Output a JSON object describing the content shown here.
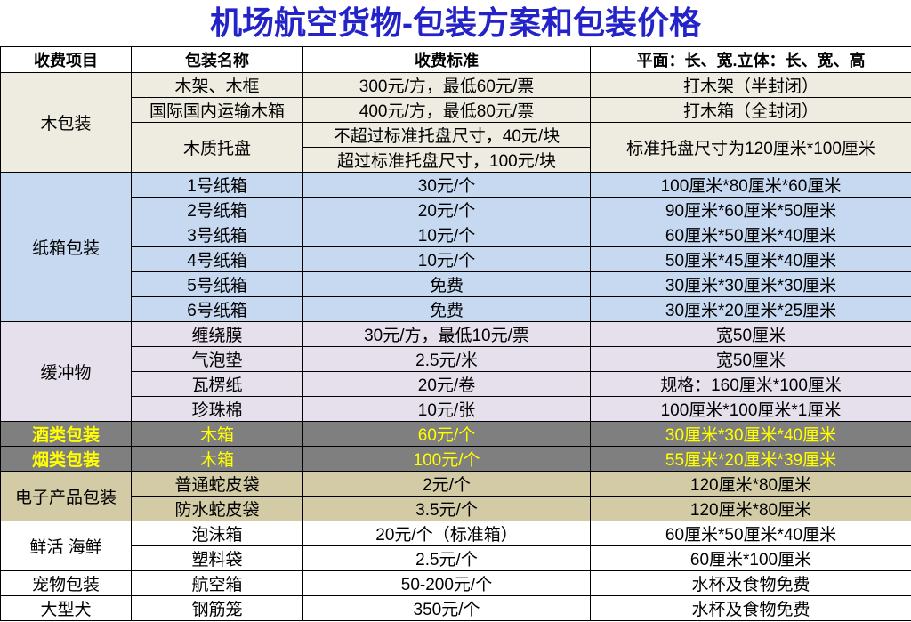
{
  "table": {
    "title": "机场航空货物-包装方案和包装价格",
    "header": [
      "收费项目",
      "包装名称",
      "收费标准",
      "平面：长、宽.立体：长、宽、高"
    ],
    "groups": [
      {
        "category": "木包装",
        "rows": [
          {
            "name": "木架、木框",
            "price": "300元/方，最低60元/票",
            "spec": "打木架（半封闭）"
          },
          {
            "name": "国际国内运输木箱",
            "price": "400元/方，最低80元/票",
            "spec": "打木箱（全封闭）"
          },
          {
            "name": "木质托盘",
            "price": [
              "不超过标准托盘尺寸，40元/块",
              "超过标准托盘尺寸，100元/块"
            ],
            "spec": "标准托盘尺寸为120厘米*100厘米"
          }
        ]
      },
      {
        "category": "纸箱包装",
        "rows": [
          {
            "name": "1号纸箱",
            "price": "30元/个",
            "spec": "100厘米*80厘米*60厘米"
          },
          {
            "name": "2号纸箱",
            "price": "20元/个",
            "spec": "90厘米*60厘米*50厘米"
          },
          {
            "name": "3号纸箱",
            "price": "10元/个",
            "spec": "60厘米*50厘米*40厘米"
          },
          {
            "name": "4号纸箱",
            "price": "10元/个",
            "spec": "50厘米*45厘米*40厘米"
          },
          {
            "name": "5号纸箱",
            "price": "免费",
            "spec": "30厘米*30厘米*30厘米"
          },
          {
            "name": "6号纸箱",
            "price": "免费",
            "spec": "30厘米*20厘米*25厘米"
          }
        ]
      },
      {
        "category": "缓冲物",
        "rows": [
          {
            "name": "缠绕膜",
            "price": "30元/方，最低10元/票",
            "spec": "宽50厘米"
          },
          {
            "name": "气泡垫",
            "price": "2.5元/米",
            "spec": "宽50厘米"
          },
          {
            "name": "瓦楞纸",
            "price": "20元/卷",
            "spec": "规格：160厘米*100厘米"
          },
          {
            "name": "珍珠棉",
            "price": "10元/张",
            "spec": "100厘米*100厘米*1厘米"
          }
        ]
      },
      {
        "category": "酒类包装",
        "rows": [
          {
            "name": "木箱",
            "price": "60元/个",
            "spec": "30厘米*30厘米*40厘米"
          }
        ]
      },
      {
        "category": "烟类包装",
        "rows": [
          {
            "name": "木箱",
            "price": "100元/个",
            "spec": "55厘米*20厘米*39厘米"
          }
        ]
      },
      {
        "category": "电子产品包装",
        "rows": [
          {
            "name": "普通蛇皮袋",
            "price": "2元/个",
            "spec": "120厘米*80厘米"
          },
          {
            "name": "防水蛇皮袋",
            "price": "3.5元/个",
            "spec": "120厘米*80厘米"
          }
        ]
      },
      {
        "category": "鲜活 海鲜",
        "rows": [
          {
            "name": "泡沫箱",
            "price": "20元/个（标准箱）",
            "spec": "60厘米*50厘米*40厘米"
          },
          {
            "name": "塑料袋",
            "price": "2.5元/个",
            "spec": "60厘米*100厘米"
          }
        ]
      },
      {
        "category": "宠物包装",
        "rows": [
          {
            "name": "航空箱",
            "price": "50-200元/个",
            "spec": "水杯及食物免费"
          }
        ]
      },
      {
        "category": "大型犬",
        "rows": [
          {
            "name": "钢筋笼",
            "price": "350元/个",
            "spec": "水杯及食物免费"
          }
        ]
      }
    ]
  }
}
